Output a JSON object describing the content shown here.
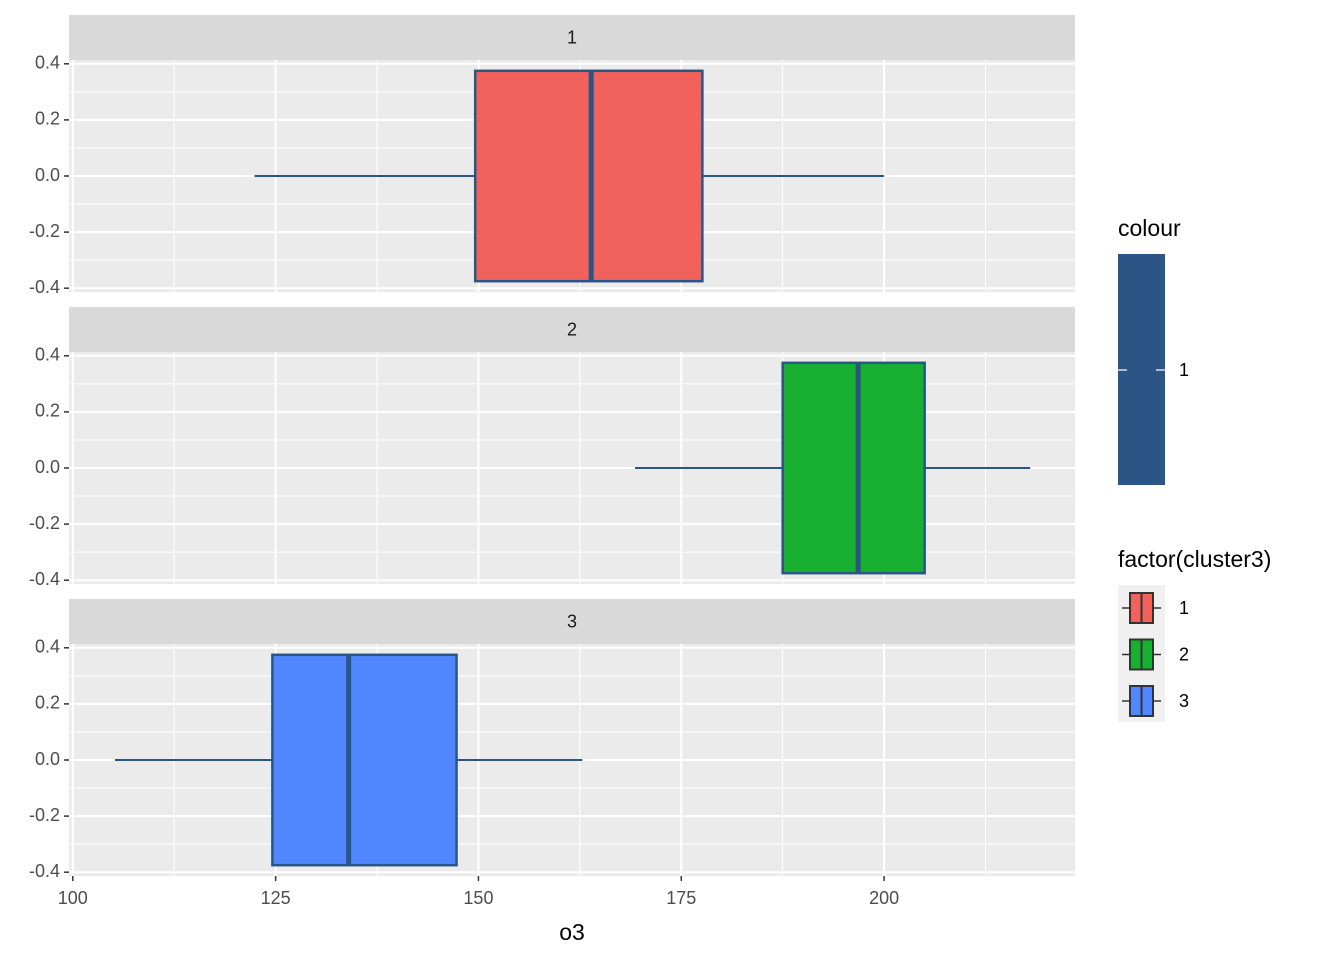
{
  "chart_data": {
    "type": "boxplot",
    "facet_variable": "factor(cluster3)",
    "facets": [
      "1",
      "2",
      "3"
    ],
    "xlabel": "o3",
    "ylabel": "",
    "xlim": [
      100,
      223.5
    ],
    "ylim": [
      -0.4,
      0.4
    ],
    "x_ticks": [
      100,
      125,
      150,
      175,
      200
    ],
    "y_ticks": [
      0.4,
      0.2,
      0.0,
      -0.2,
      -0.4
    ],
    "y_tick_labels": [
      "0.4",
      "0.2",
      "0.0",
      "-0.2",
      "-0.4"
    ],
    "grid": true,
    "box_half_height": 0.375,
    "outline_color": "#2a5585",
    "boxes": [
      {
        "facet": "1",
        "fill": "#f2625c",
        "min": 122.4,
        "q1": 149.6,
        "median": 163.9,
        "q3": 177.6,
        "max": 200.0
      },
      {
        "facet": "2",
        "fill": "#17b030",
        "min": 169.3,
        "q1": 187.5,
        "median": 196.8,
        "q3": 205.0,
        "max": 218.0
      },
      {
        "facet": "3",
        "fill": "#5086fe",
        "min": 105.2,
        "q1": 124.6,
        "median": 134.0,
        "q3": 147.3,
        "max": 162.8
      }
    ],
    "legend": {
      "placement": "right",
      "colour_title": "colour",
      "colour_label": "1",
      "fill_title": "factor(cluster3)",
      "fill_items": [
        {
          "label": "1",
          "color": "#f2625c"
        },
        {
          "label": "2",
          "color": "#17b030"
        },
        {
          "label": "3",
          "color": "#5086fe"
        }
      ]
    }
  }
}
